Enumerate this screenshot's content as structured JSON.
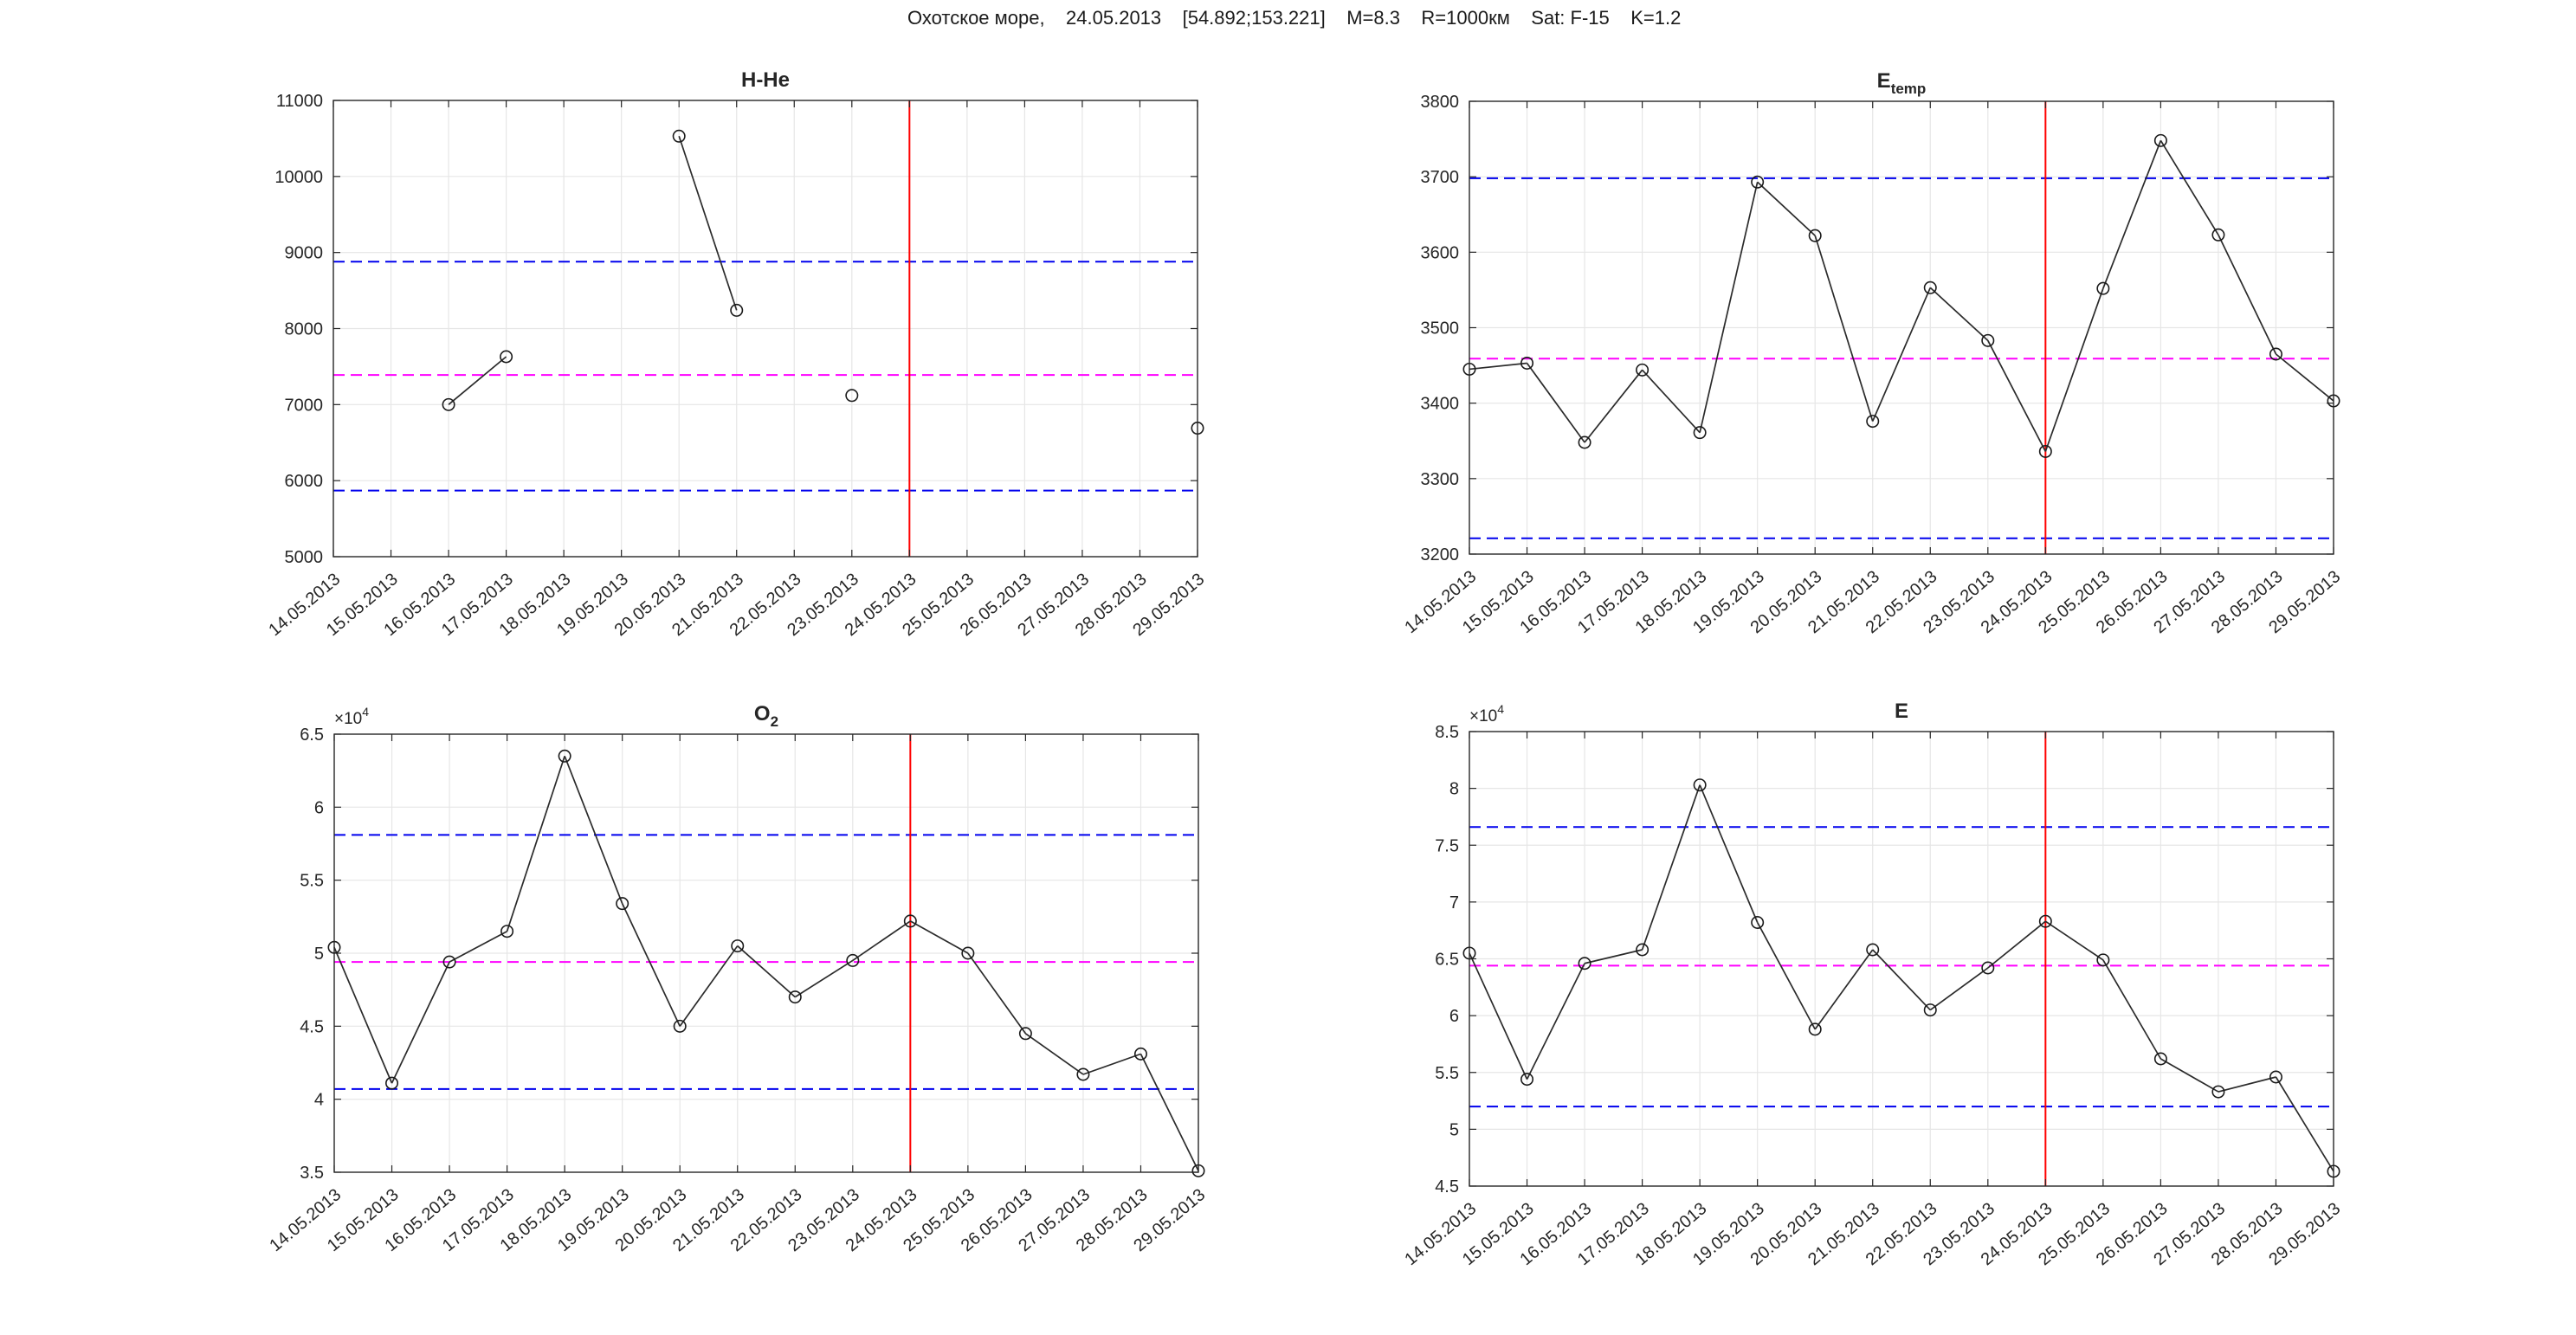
{
  "header": {
    "title": "Охотское море,    24.05.2013    [54.892;153.221]    M=8.3    R=1000км    Sat: F-15    K=1.2"
  },
  "colors": {
    "series_line": "#2b2b2b",
    "marker_stroke": "#1a1a1a",
    "bounds_blue": "#0000ee",
    "mean_magenta": "#ff00ff",
    "event_red": "#ff0000",
    "grid": "#e6e6e6",
    "axis": "#262626",
    "text": "#262626"
  },
  "chart_data": [
    {
      "id": "hhe",
      "type": "line",
      "title_main": "H-He",
      "title_sub": "",
      "y_exponent_base": "",
      "y_exponent_power": "",
      "categories": [
        "14.05.2013",
        "15.05.2013",
        "16.05.2013",
        "17.05.2013",
        "18.05.2013",
        "19.05.2013",
        "20.05.2013",
        "21.05.2013",
        "22.05.2013",
        "23.05.2013",
        "24.05.2013",
        "25.05.2013",
        "26.05.2013",
        "27.05.2013",
        "28.05.2013",
        "29.05.2013"
      ],
      "values": [
        null,
        null,
        7000,
        7630,
        null,
        null,
        10530,
        8240,
        null,
        7120,
        null,
        null,
        null,
        null,
        null,
        6690
      ],
      "ylim": [
        5000,
        11000
      ],
      "ytick_values": [
        5000,
        6000,
        7000,
        8000,
        9000,
        10000,
        11000
      ],
      "ytick_labels": [
        "5000",
        "6000",
        "7000",
        "8000",
        "9000",
        "10000",
        "11000"
      ],
      "upper_bound": 8880,
      "mean_line": 7390,
      "lower_bound": 5870,
      "event_index": 10,
      "event_x_label": "24.05.2013",
      "grid": true,
      "legend": "none"
    },
    {
      "id": "etemp",
      "type": "line",
      "title_main": "E",
      "title_sub": "temp",
      "y_exponent_base": "",
      "y_exponent_power": "",
      "categories": [
        "14.05.2013",
        "15.05.2013",
        "16.05.2013",
        "17.05.2013",
        "18.05.2013",
        "19.05.2013",
        "20.05.2013",
        "21.05.2013",
        "22.05.2013",
        "23.05.2013",
        "24.05.2013",
        "25.05.2013",
        "26.05.2013",
        "27.05.2013",
        "28.05.2013",
        "29.05.2013"
      ],
      "values": [
        3445,
        3453,
        3348,
        3444,
        3361,
        3693,
        3622,
        3376,
        3553,
        3483,
        3336,
        3552,
        3748,
        3623,
        3465,
        3403
      ],
      "ylim": [
        3200,
        3800
      ],
      "ytick_values": [
        3200,
        3300,
        3400,
        3500,
        3600,
        3700,
        3800
      ],
      "ytick_labels": [
        "3200",
        "3300",
        "3400",
        "3500",
        "3600",
        "3700",
        "3800"
      ],
      "upper_bound": 3698,
      "mean_line": 3459,
      "lower_bound": 3221,
      "event_index": 10,
      "event_x_label": "24.05.2013",
      "grid": true,
      "legend": "none"
    },
    {
      "id": "o2",
      "type": "line",
      "title_main": "O",
      "title_sub": "2",
      "y_exponent_base": "×10",
      "y_exponent_power": "4",
      "categories": [
        "14.05.2013",
        "15.05.2013",
        "16.05.2013",
        "17.05.2013",
        "18.05.2013",
        "19.05.2013",
        "20.05.2013",
        "21.05.2013",
        "22.05.2013",
        "23.05.2013",
        "24.05.2013",
        "25.05.2013",
        "26.05.2013",
        "27.05.2013",
        "28.05.2013",
        "29.05.2013"
      ],
      "values": [
        5.04,
        4.11,
        4.94,
        5.15,
        6.35,
        5.34,
        4.5,
        5.05,
        4.7,
        4.95,
        5.22,
        5.0,
        4.45,
        4.17,
        4.31,
        3.51
      ],
      "ylim": [
        3.5,
        6.5
      ],
      "ytick_values": [
        3.5,
        4,
        4.5,
        5,
        5.5,
        6,
        6.5
      ],
      "ytick_labels": [
        "3.5",
        "4",
        "4.5",
        "5",
        "5.5",
        "6",
        "6.5"
      ],
      "upper_bound": 5.81,
      "mean_line": 4.94,
      "lower_bound": 4.07,
      "event_index": 10,
      "event_x_label": "24.05.2013",
      "grid": true,
      "legend": "none"
    },
    {
      "id": "e",
      "type": "line",
      "title_main": "E",
      "title_sub": "",
      "y_exponent_base": "×10",
      "y_exponent_power": "4",
      "categories": [
        "14.05.2013",
        "15.05.2013",
        "16.05.2013",
        "17.05.2013",
        "18.05.2013",
        "19.05.2013",
        "20.05.2013",
        "21.05.2013",
        "22.05.2013",
        "23.05.2013",
        "24.05.2013",
        "25.05.2013",
        "26.05.2013",
        "27.05.2013",
        "28.05.2013",
        "29.05.2013"
      ],
      "values": [
        6.55,
        5.44,
        6.46,
        6.58,
        8.03,
        6.82,
        5.88,
        6.58,
        6.05,
        6.42,
        6.83,
        6.49,
        5.62,
        5.33,
        5.46,
        4.63
      ],
      "ylim": [
        4.5,
        8.5
      ],
      "ytick_values": [
        4.5,
        5,
        5.5,
        6,
        6.5,
        7,
        7.5,
        8,
        8.5
      ],
      "ytick_labels": [
        "4.5",
        "5",
        "5.5",
        "6",
        "6.5",
        "7",
        "7.5",
        "8",
        "8.5"
      ],
      "upper_bound": 7.66,
      "mean_line": 6.44,
      "lower_bound": 5.2,
      "event_index": 10,
      "event_x_label": "24.05.2013",
      "grid": true,
      "legend": "none"
    }
  ]
}
